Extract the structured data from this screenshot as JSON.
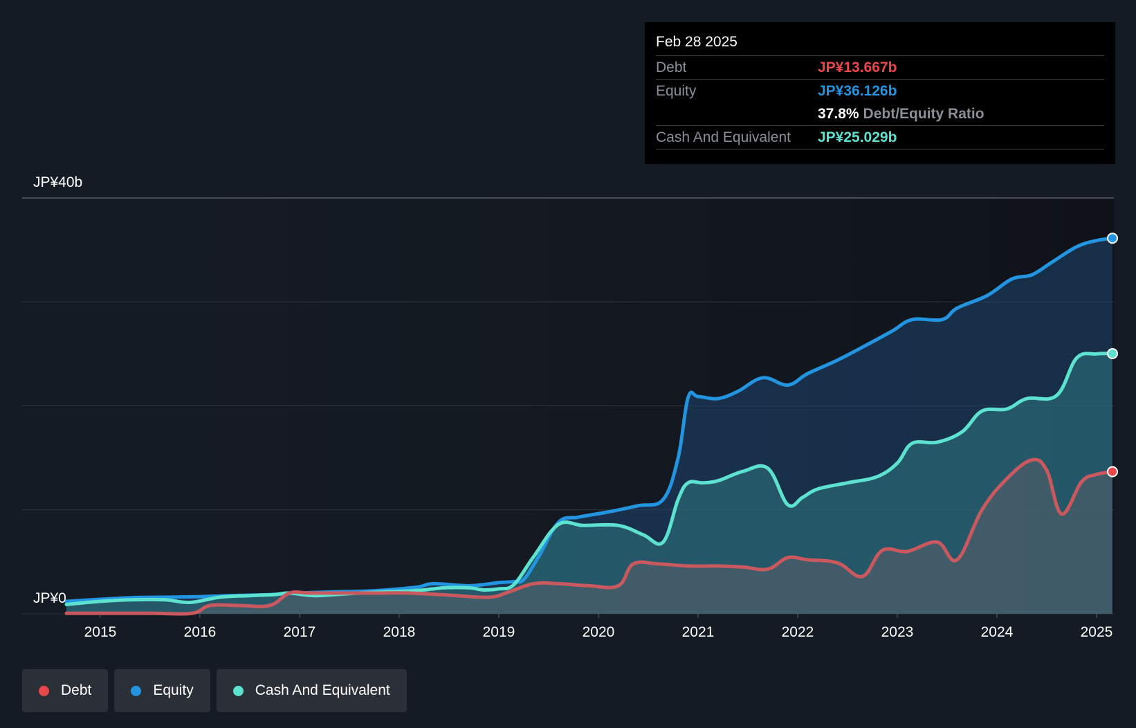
{
  "tooltip": {
    "date": "Feb 28 2025",
    "debt_label": "Debt",
    "debt_value": "JP¥13.667b",
    "equity_label": "Equity",
    "equity_value": "JP¥36.126b",
    "ratio_value": "37.8%",
    "ratio_label": "Debt/Equity Ratio",
    "cash_label": "Cash And Equivalent",
    "cash_value": "JP¥25.029b"
  },
  "legend": {
    "debt": "Debt",
    "equity": "Equity",
    "cash": "Cash And Equivalent"
  },
  "colors": {
    "debt": "#e8474c",
    "equity": "#2394df",
    "cash": "#5ee2d0",
    "background": "#151b24"
  },
  "chart_data": {
    "type": "area",
    "ylim": [
      0,
      40
    ],
    "y_unit": "JP¥ b",
    "y_tick_labels": [
      "JP¥0",
      "JP¥40b"
    ],
    "x_tick_labels": [
      "2015",
      "2016",
      "2017",
      "2018",
      "2019",
      "2020",
      "2021",
      "2022",
      "2023",
      "2024",
      "2025"
    ],
    "x_range": [
      2014.66,
      2025.16
    ],
    "series": [
      {
        "name": "Equity",
        "color": "#2394df",
        "points": [
          [
            2014.66,
            1.2
          ],
          [
            2015.0,
            1.4
          ],
          [
            2015.3,
            1.55
          ],
          [
            2015.6,
            1.6
          ],
          [
            2016.0,
            1.65
          ],
          [
            2016.3,
            1.75
          ],
          [
            2016.7,
            1.85
          ],
          [
            2017.0,
            2.0
          ],
          [
            2017.3,
            2.1
          ],
          [
            2017.7,
            2.2
          ],
          [
            2018.0,
            2.4
          ],
          [
            2018.2,
            2.6
          ],
          [
            2018.35,
            2.9
          ],
          [
            2018.7,
            2.7
          ],
          [
            2019.0,
            3.0
          ],
          [
            2019.15,
            3.1
          ],
          [
            2019.25,
            3.3
          ],
          [
            2019.4,
            5.5
          ],
          [
            2019.6,
            8.8
          ],
          [
            2019.8,
            9.3
          ],
          [
            2020.1,
            9.8
          ],
          [
            2020.4,
            10.4
          ],
          [
            2020.65,
            11.0
          ],
          [
            2020.8,
            15.0
          ],
          [
            2020.9,
            20.8
          ],
          [
            2021.0,
            20.9
          ],
          [
            2021.2,
            20.7
          ],
          [
            2021.4,
            21.4
          ],
          [
            2021.65,
            22.7
          ],
          [
            2021.9,
            22.0
          ],
          [
            2022.1,
            23.1
          ],
          [
            2022.4,
            24.4
          ],
          [
            2022.7,
            25.9
          ],
          [
            2022.95,
            27.2
          ],
          [
            2023.15,
            28.3
          ],
          [
            2023.45,
            28.3
          ],
          [
            2023.6,
            29.4
          ],
          [
            2023.9,
            30.6
          ],
          [
            2024.15,
            32.2
          ],
          [
            2024.35,
            32.6
          ],
          [
            2024.55,
            33.8
          ],
          [
            2024.8,
            35.3
          ],
          [
            2025.0,
            35.9
          ],
          [
            2025.16,
            36.126
          ]
        ]
      },
      {
        "name": "Cash And Equivalent",
        "color": "#5ee2d0",
        "points": [
          [
            2014.66,
            0.9
          ],
          [
            2015.0,
            1.2
          ],
          [
            2015.3,
            1.35
          ],
          [
            2015.65,
            1.35
          ],
          [
            2015.9,
            1.1
          ],
          [
            2016.2,
            1.6
          ],
          [
            2016.5,
            1.75
          ],
          [
            2016.75,
            1.85
          ],
          [
            2016.9,
            2.0
          ],
          [
            2017.15,
            1.75
          ],
          [
            2017.5,
            1.95
          ],
          [
            2017.8,
            2.1
          ],
          [
            2018.1,
            2.2
          ],
          [
            2018.25,
            2.3
          ],
          [
            2018.45,
            2.5
          ],
          [
            2018.7,
            2.5
          ],
          [
            2018.85,
            2.3
          ],
          [
            2019.0,
            2.4
          ],
          [
            2019.15,
            2.8
          ],
          [
            2019.35,
            5.5
          ],
          [
            2019.6,
            8.6
          ],
          [
            2019.85,
            8.5
          ],
          [
            2020.2,
            8.5
          ],
          [
            2020.45,
            7.6
          ],
          [
            2020.65,
            6.9
          ],
          [
            2020.8,
            11.0
          ],
          [
            2020.9,
            12.6
          ],
          [
            2021.05,
            12.6
          ],
          [
            2021.2,
            12.8
          ],
          [
            2021.45,
            13.7
          ],
          [
            2021.7,
            14.0
          ],
          [
            2021.9,
            10.5
          ],
          [
            2022.05,
            11.2
          ],
          [
            2022.2,
            12.0
          ],
          [
            2022.5,
            12.6
          ],
          [
            2022.8,
            13.2
          ],
          [
            2023.0,
            14.5
          ],
          [
            2023.15,
            16.4
          ],
          [
            2023.4,
            16.5
          ],
          [
            2023.65,
            17.5
          ],
          [
            2023.85,
            19.5
          ],
          [
            2024.1,
            19.7
          ],
          [
            2024.3,
            20.7
          ],
          [
            2024.6,
            21.0
          ],
          [
            2024.8,
            24.6
          ],
          [
            2025.0,
            25.0
          ],
          [
            2025.16,
            25.029
          ]
        ]
      },
      {
        "name": "Debt",
        "color": "#e8474c",
        "points": [
          [
            2014.66,
            0.05
          ],
          [
            2015.5,
            0.05
          ],
          [
            2015.92,
            0.05
          ],
          [
            2016.1,
            0.8
          ],
          [
            2016.4,
            0.8
          ],
          [
            2016.7,
            0.8
          ],
          [
            2016.9,
            2.0
          ],
          [
            2017.1,
            2.0
          ],
          [
            2017.5,
            2.0
          ],
          [
            2017.8,
            2.0
          ],
          [
            2018.1,
            2.0
          ],
          [
            2018.5,
            1.8
          ],
          [
            2018.9,
            1.6
          ],
          [
            2019.1,
            2.1
          ],
          [
            2019.35,
            2.9
          ],
          [
            2019.6,
            2.9
          ],
          [
            2019.9,
            2.7
          ],
          [
            2020.2,
            2.7
          ],
          [
            2020.35,
            4.8
          ],
          [
            2020.6,
            4.8
          ],
          [
            2020.9,
            4.6
          ],
          [
            2021.2,
            4.6
          ],
          [
            2021.45,
            4.5
          ],
          [
            2021.7,
            4.3
          ],
          [
            2021.9,
            5.4
          ],
          [
            2022.1,
            5.2
          ],
          [
            2022.4,
            4.9
          ],
          [
            2022.65,
            3.6
          ],
          [
            2022.85,
            6.1
          ],
          [
            2023.1,
            6.0
          ],
          [
            2023.4,
            6.9
          ],
          [
            2023.6,
            5.2
          ],
          [
            2023.85,
            10.0
          ],
          [
            2024.1,
            13.0
          ],
          [
            2024.35,
            14.8
          ],
          [
            2024.5,
            13.8
          ],
          [
            2024.65,
            9.6
          ],
          [
            2024.85,
            12.7
          ],
          [
            2025.0,
            13.4
          ],
          [
            2025.16,
            13.667
          ]
        ]
      }
    ]
  }
}
